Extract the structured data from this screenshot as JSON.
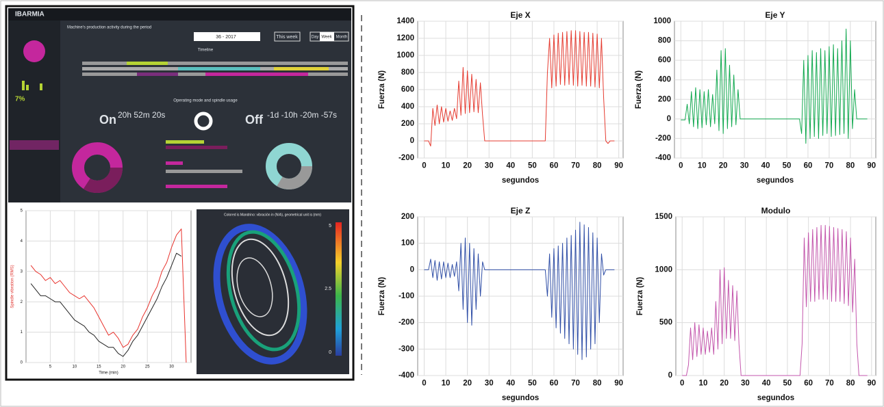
{
  "chart_data": [
    {
      "type": "line",
      "title": "Eje X",
      "x_label": "segundos",
      "y_label": "Fuerza (N)",
      "color": "#e53a2f",
      "grid": true,
      "xlim": [
        -3,
        92
      ],
      "ylim": [
        -200,
        1400
      ],
      "xticks": [
        0,
        10,
        20,
        30,
        40,
        50,
        60,
        70,
        80,
        90
      ],
      "yticks": [
        -200,
        0,
        200,
        400,
        600,
        800,
        1000,
        1200,
        1400
      ],
      "x": [
        0,
        1,
        2,
        3,
        4,
        5,
        6,
        7,
        8,
        9,
        10,
        11,
        12,
        13,
        14,
        15,
        16,
        17,
        18,
        19,
        20,
        21,
        22,
        23,
        24,
        25,
        26,
        27,
        28,
        29,
        30,
        31,
        32,
        33,
        34,
        35,
        36,
        37,
        38,
        39,
        40,
        41,
        42,
        43,
        44,
        45,
        46,
        47,
        48,
        49,
        50,
        51,
        52,
        53,
        54,
        55,
        56,
        57,
        58,
        59,
        60,
        61,
        62,
        63,
        64,
        65,
        66,
        67,
        68,
        69,
        70,
        71,
        72,
        73,
        74,
        75,
        76,
        77,
        78,
        79,
        80,
        81,
        82,
        83,
        84,
        85,
        86,
        87,
        88
      ],
      "values": [
        0,
        0,
        0,
        -60,
        380,
        180,
        420,
        200,
        400,
        220,
        380,
        230,
        350,
        240,
        380,
        260,
        700,
        300,
        860,
        320,
        820,
        330,
        780,
        340,
        720,
        330,
        680,
        300,
        0,
        0,
        0,
        0,
        0,
        0,
        0,
        0,
        0,
        0,
        0,
        0,
        0,
        0,
        0,
        0,
        0,
        0,
        0,
        0,
        0,
        0,
        0,
        0,
        0,
        0,
        0,
        0,
        0,
        800,
        1200,
        620,
        1240,
        640,
        1260,
        660,
        1270,
        650,
        1280,
        660,
        1290,
        650,
        1290,
        640,
        1280,
        650,
        1270,
        640,
        1270,
        640,
        1260,
        630,
        1250,
        620,
        1200,
        500,
        0,
        -30,
        0,
        0,
        0
      ]
    },
    {
      "type": "line",
      "title": "Eje Y",
      "x_label": "segundos",
      "y_label": "Fuerza (N)",
      "color": "#10a84e",
      "grid": true,
      "xlim": [
        -3,
        92
      ],
      "ylim": [
        -400,
        1000
      ],
      "xticks": [
        0,
        10,
        20,
        30,
        40,
        50,
        60,
        70,
        80,
        90
      ],
      "yticks": [
        -400,
        -200,
        0,
        200,
        400,
        600,
        800,
        1000
      ],
      "x": [
        0,
        1,
        2,
        3,
        4,
        5,
        6,
        7,
        8,
        9,
        10,
        11,
        12,
        13,
        14,
        15,
        16,
        17,
        18,
        19,
        20,
        21,
        22,
        23,
        24,
        25,
        26,
        27,
        28,
        29,
        30,
        31,
        32,
        33,
        34,
        35,
        36,
        37,
        38,
        39,
        40,
        41,
        42,
        43,
        44,
        45,
        46,
        47,
        48,
        49,
        50,
        51,
        52,
        53,
        54,
        55,
        56,
        57,
        58,
        59,
        60,
        61,
        62,
        63,
        64,
        65,
        66,
        67,
        68,
        69,
        70,
        71,
        72,
        73,
        74,
        75,
        76,
        77,
        78,
        79,
        80,
        81,
        82,
        83,
        84,
        85,
        86,
        87,
        88
      ],
      "values": [
        -10,
        -10,
        -10,
        150,
        -50,
        280,
        -80,
        320,
        -100,
        300,
        -90,
        280,
        -60,
        300,
        -80,
        250,
        -50,
        500,
        -120,
        700,
        -150,
        720,
        -100,
        550,
        -80,
        450,
        -60,
        300,
        0,
        0,
        0,
        0,
        0,
        0,
        0,
        0,
        0,
        0,
        0,
        0,
        0,
        0,
        0,
        0,
        0,
        0,
        0,
        0,
        0,
        0,
        0,
        0,
        0,
        0,
        0,
        0,
        0,
        -150,
        600,
        -250,
        650,
        -200,
        700,
        -180,
        680,
        -200,
        720,
        -170,
        700,
        -150,
        740,
        -180,
        760,
        -170,
        720,
        -160,
        800,
        -150,
        920,
        -200,
        800,
        -100,
        300,
        0,
        0,
        0,
        0,
        0,
        0
      ]
    },
    {
      "type": "line",
      "title": "Eje Z",
      "x_label": "segundos",
      "y_label": "Fuerza (N)",
      "color": "#2f4ea6",
      "grid": true,
      "xlim": [
        -3,
        92
      ],
      "ylim": [
        -400,
        200
      ],
      "xticks": [
        0,
        10,
        20,
        30,
        40,
        50,
        60,
        70,
        80,
        90
      ],
      "yticks": [
        -400,
        -300,
        -200,
        -100,
        0,
        100,
        200
      ],
      "x": [
        0,
        1,
        2,
        3,
        4,
        5,
        6,
        7,
        8,
        9,
        10,
        11,
        12,
        13,
        14,
        15,
        16,
        17,
        18,
        19,
        20,
        21,
        22,
        23,
        24,
        25,
        26,
        27,
        28,
        29,
        30,
        31,
        32,
        33,
        34,
        35,
        36,
        37,
        38,
        39,
        40,
        41,
        42,
        43,
        44,
        45,
        46,
        47,
        48,
        49,
        50,
        51,
        52,
        53,
        54,
        55,
        56,
        57,
        58,
        59,
        60,
        61,
        62,
        63,
        64,
        65,
        66,
        67,
        68,
        69,
        70,
        71,
        72,
        73,
        74,
        75,
        76,
        77,
        78,
        79,
        80,
        81,
        82,
        83,
        84,
        85,
        86,
        87,
        88
      ],
      "values": [
        0,
        0,
        0,
        40,
        -30,
        35,
        -40,
        30,
        -35,
        30,
        -30,
        25,
        -30,
        20,
        -25,
        30,
        -80,
        100,
        -150,
        120,
        -200,
        100,
        -210,
        80,
        -150,
        60,
        -100,
        30,
        0,
        0,
        0,
        0,
        0,
        0,
        0,
        0,
        0,
        0,
        0,
        0,
        0,
        0,
        0,
        0,
        0,
        0,
        0,
        0,
        0,
        0,
        0,
        0,
        0,
        0,
        0,
        0,
        0,
        -100,
        60,
        -180,
        80,
        -220,
        90,
        -240,
        100,
        -260,
        120,
        -280,
        130,
        -300,
        150,
        -320,
        180,
        -340,
        170,
        -330,
        160,
        -300,
        140,
        -280,
        120,
        -200,
        60,
        -20,
        0,
        0,
        0,
        0,
        0
      ]
    },
    {
      "type": "line",
      "title": "Modulo",
      "x_label": "segundos",
      "y_label": "Fuerza (N)",
      "color": "#c356ac",
      "grid": true,
      "xlim": [
        -3,
        92
      ],
      "ylim": [
        0,
        1500
      ],
      "xticks": [
        0,
        10,
        20,
        30,
        40,
        50,
        60,
        70,
        80,
        90
      ],
      "yticks": [
        0,
        500,
        1000,
        1500
      ],
      "x": [
        0,
        1,
        2,
        3,
        4,
        5,
        6,
        7,
        8,
        9,
        10,
        11,
        12,
        13,
        14,
        15,
        16,
        17,
        18,
        19,
        20,
        21,
        22,
        23,
        24,
        25,
        26,
        27,
        28,
        29,
        30,
        31,
        32,
        33,
        34,
        35,
        36,
        37,
        38,
        39,
        40,
        41,
        42,
        43,
        44,
        45,
        46,
        47,
        48,
        49,
        50,
        51,
        52,
        53,
        54,
        55,
        56,
        57,
        58,
        59,
        60,
        61,
        62,
        63,
        64,
        65,
        66,
        67,
        68,
        69,
        70,
        71,
        72,
        73,
        74,
        75,
        76,
        77,
        78,
        79,
        80,
        81,
        82,
        83,
        84,
        85,
        86,
        87,
        88
      ],
      "values": [
        0,
        0,
        0,
        100,
        450,
        150,
        500,
        180,
        480,
        200,
        450,
        200,
        420,
        220,
        450,
        200,
        700,
        250,
        1000,
        300,
        1020,
        350,
        900,
        350,
        850,
        330,
        800,
        300,
        0,
        0,
        0,
        0,
        0,
        0,
        0,
        0,
        0,
        0,
        0,
        0,
        0,
        0,
        0,
        0,
        0,
        0,
        0,
        0,
        0,
        0,
        0,
        0,
        0,
        0,
        0,
        0,
        0,
        300,
        1300,
        650,
        1350,
        700,
        1380,
        700,
        1400,
        720,
        1420,
        720,
        1420,
        720,
        1410,
        700,
        1400,
        700,
        1390,
        700,
        1380,
        680,
        1360,
        660,
        1300,
        600,
        1100,
        300,
        0,
        0,
        0,
        0,
        0
      ]
    },
    {
      "type": "line",
      "x_label": "Time (min)",
      "y_label": "Spindle vibration (RMS)",
      "y_label_color": "#e0332d",
      "grid": true,
      "xlim": [
        0,
        34
      ],
      "ylim": [
        0,
        5
      ],
      "xticks": [
        5,
        10,
        15,
        20,
        25,
        30
      ],
      "yticks": [
        0,
        1,
        2,
        3,
        4,
        5
      ],
      "x": [
        1,
        2,
        3,
        4,
        5,
        6,
        7,
        8,
        9,
        10,
        11,
        12,
        13,
        14,
        15,
        16,
        17,
        18,
        19,
        20,
        21,
        22,
        23,
        24,
        25,
        26,
        27,
        28,
        29,
        30,
        31,
        32,
        33
      ],
      "series": [
        {
          "color": "#e8322c",
          "values": [
            3.2,
            3.0,
            2.9,
            2.7,
            2.8,
            2.6,
            2.7,
            2.5,
            2.3,
            2.2,
            2.1,
            2.2,
            2.0,
            1.8,
            1.5,
            1.2,
            0.9,
            1.0,
            0.8,
            0.5,
            0.6,
            0.9,
            1.1,
            1.5,
            1.8,
            2.2,
            2.5,
            3.0,
            3.3,
            3.8,
            4.2,
            4.4,
            0
          ]
        },
        {
          "color": "#222222",
          "values": [
            2.6,
            2.4,
            2.2,
            2.2,
            2.1,
            2.0,
            2.0,
            1.8,
            1.6,
            1.4,
            1.3,
            1.2,
            1.0,
            0.9,
            0.7,
            0.6,
            0.5,
            0.5,
            0.3,
            0.2,
            0.4,
            0.7,
            0.9,
            1.2,
            1.5,
            1.8,
            2.1,
            2.5,
            2.8,
            3.2,
            3.6,
            3.5,
            null
          ]
        }
      ]
    }
  ],
  "dashboard": {
    "brand": "IBARMIA",
    "header": "Machine's production activity during the period",
    "week": "36 - 2017",
    "this_week": "This week",
    "views": [
      "Day",
      "Week",
      "Month"
    ],
    "timeline": "Timeline",
    "section": "Operating mode and spindle usage",
    "on_label": "On",
    "on_time": "20h 52m 20s",
    "off_label": "Off",
    "off_time": "-1d -10h -20m -57s",
    "usage": "7%"
  },
  "render": {
    "title": "Colored is Mandrino: vibración in (N/A), geometrical unit is (mm)",
    "scale": [
      "5",
      "2.5",
      "0"
    ]
  }
}
